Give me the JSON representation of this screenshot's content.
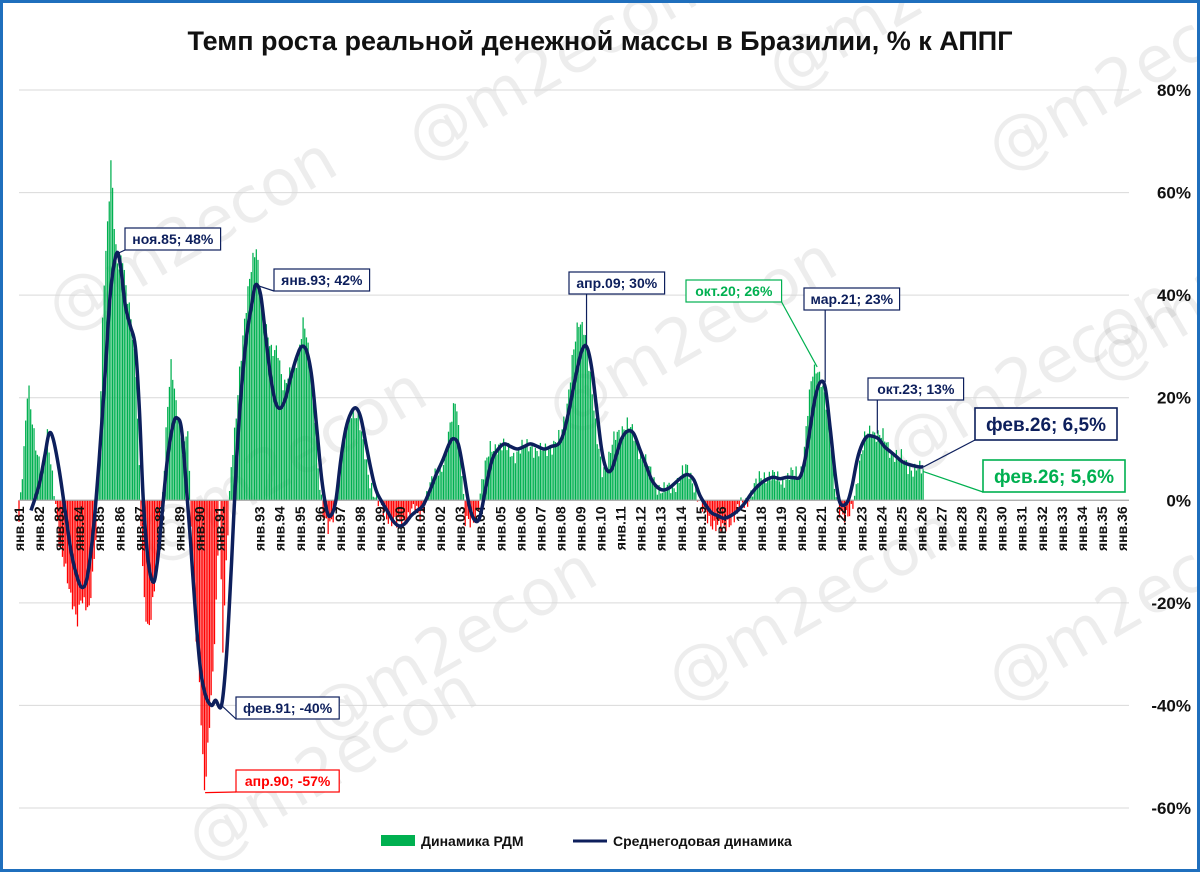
{
  "chart_data": {
    "type": "bar+line",
    "title": "Темп роста реальной денежной массы в Бразилии, % к АППГ",
    "watermark": "@m2econ",
    "y_axis": {
      "min": -60,
      "max": 80,
      "step": 20,
      "position": "right",
      "tick_labels": [
        "80%",
        "60%",
        "40%",
        "20%",
        "0%",
        "-20%",
        "-40%",
        "-60%"
      ]
    },
    "x_axis": {
      "start_year": 1981,
      "end_year": 2036,
      "tick_labels": [
        "янв.81",
        "янв.82",
        "янв.83",
        "янв.84",
        "янв.85",
        "янв.86",
        "янв.87",
        "янв.88",
        "янв.89",
        "янв.90",
        "янв.91",
        "янв.93",
        "янв.94",
        "янв.95",
        "янв.96",
        "янв.97",
        "янв.98",
        "янв.99",
        "янв.00",
        "янв.01",
        "янв.02",
        "янв.03",
        "янв.04",
        "янв.05",
        "янв.06",
        "янв.07",
        "янв.08",
        "янв.09",
        "янв.10",
        "янв.11",
        "янв.12",
        "янв.13",
        "янв.14",
        "янв.15",
        "янв.16",
        "янв.17",
        "янв.18",
        "янв.19",
        "янв.20",
        "янв.21",
        "янв.22",
        "янв.23",
        "янв.24",
        "янв.25",
        "янв.26",
        "янв.27",
        "янв.28",
        "янв.29",
        "янв.30",
        "янв.31",
        "янв.32",
        "янв.33",
        "янв.34",
        "янв.35",
        "янв.36"
      ],
      "tick_years": [
        1981,
        1982,
        1983,
        1984,
        1985,
        1986,
        1987,
        1988,
        1989,
        1990,
        1991,
        1993,
        1994,
        1995,
        1996,
        1997,
        1998,
        1999,
        2000,
        2001,
        2002,
        2003,
        2004,
        2005,
        2006,
        2007,
        2008,
        2009,
        2010,
        2011,
        2012,
        2013,
        2014,
        2015,
        2016,
        2017,
        2018,
        2019,
        2020,
        2021,
        2022,
        2023,
        2024,
        2025,
        2026,
        2027,
        2028,
        2029,
        2030,
        2031,
        2032,
        2033,
        2034,
        2035,
        2036
      ]
    },
    "grid": true,
    "legend_position": "bottom",
    "colors": {
      "bar_positive": "#00b050",
      "bar_negative": "#ff0000",
      "line": "#0d1f5c",
      "annotation_navy": "#0d1f5c",
      "annotation_green": "#00b050",
      "annotation_red": "#ff0000",
      "frame": "#1f6fbd",
      "grid": "#d9d9d9"
    },
    "legend": [
      {
        "label": "Динамика РДМ",
        "type": "bar"
      },
      {
        "label": "Среднегодовая динамика",
        "type": "line"
      }
    ],
    "series_bars_points": [
      [
        1981.0,
        -5
      ],
      [
        1981.25,
        10
      ],
      [
        1981.45,
        24
      ],
      [
        1981.7,
        14
      ],
      [
        1981.9,
        8
      ],
      [
        1982.15,
        6
      ],
      [
        1982.4,
        14
      ],
      [
        1982.7,
        3
      ],
      [
        1983.0,
        -8
      ],
      [
        1983.3,
        -12
      ],
      [
        1983.6,
        -20
      ],
      [
        1983.9,
        -24
      ],
      [
        1984.1,
        -18
      ],
      [
        1984.5,
        -22
      ],
      [
        1984.8,
        -10
      ],
      [
        1985.0,
        10
      ],
      [
        1985.2,
        40
      ],
      [
        1985.45,
        55
      ],
      [
        1985.6,
        66
      ],
      [
        1985.8,
        50
      ],
      [
        1986.0,
        46
      ],
      [
        1986.15,
        48
      ],
      [
        1986.35,
        40
      ],
      [
        1986.6,
        35
      ],
      [
        1986.85,
        25
      ],
      [
        1987.05,
        0
      ],
      [
        1987.2,
        -18
      ],
      [
        1987.4,
        -26
      ],
      [
        1987.6,
        -22
      ],
      [
        1987.8,
        -14
      ],
      [
        1988.0,
        -6
      ],
      [
        1988.2,
        2
      ],
      [
        1988.4,
        18
      ],
      [
        1988.6,
        28
      ],
      [
        1988.8,
        20
      ],
      [
        1989.0,
        14
      ],
      [
        1989.2,
        8
      ],
      [
        1989.4,
        16
      ],
      [
        1989.6,
        -5
      ],
      [
        1989.8,
        -25
      ],
      [
        1990.0,
        -36
      ],
      [
        1990.15,
        -50
      ],
      [
        1990.28,
        -57
      ],
      [
        1990.45,
        -45
      ],
      [
        1990.65,
        -35
      ],
      [
        1990.85,
        -20
      ],
      [
        1991.0,
        0
      ],
      [
        1991.15,
        -30
      ],
      [
        1991.35,
        -10
      ],
      [
        1991.55,
        5
      ],
      [
        1991.8,
        14
      ],
      [
        1992.0,
        25
      ],
      [
        1992.2,
        34
      ],
      [
        1992.45,
        42
      ],
      [
        1992.65,
        46
      ],
      [
        1992.85,
        49
      ],
      [
        1993.05,
        40
      ],
      [
        1993.3,
        34
      ],
      [
        1993.6,
        28
      ],
      [
        1993.9,
        30
      ],
      [
        1994.2,
        22
      ],
      [
        1994.5,
        24
      ],
      [
        1994.8,
        27
      ],
      [
        1995.0,
        31
      ],
      [
        1995.2,
        35
      ],
      [
        1995.45,
        28
      ],
      [
        1995.7,
        20
      ],
      [
        1995.95,
        5
      ],
      [
        1996.15,
        -3
      ],
      [
        1996.4,
        -6
      ],
      [
        1996.7,
        -2
      ],
      [
        1997.0,
        6
      ],
      [
        1997.3,
        14
      ],
      [
        1997.6,
        18
      ],
      [
        1997.9,
        16
      ],
      [
        1998.2,
        10
      ],
      [
        1998.5,
        4
      ],
      [
        1998.8,
        0
      ],
      [
        1999.1,
        -2
      ],
      [
        1999.4,
        -3
      ],
      [
        1999.8,
        -5
      ],
      [
        2000.2,
        -4
      ],
      [
        2000.6,
        -2
      ],
      [
        2001.0,
        -3
      ],
      [
        2001.4,
        2
      ],
      [
        2001.8,
        5
      ],
      [
        2002.2,
        8
      ],
      [
        2002.5,
        14
      ],
      [
        2002.8,
        20
      ],
      [
        2003.0,
        10
      ],
      [
        2003.25,
        -4
      ],
      [
        2003.5,
        -5
      ],
      [
        2003.8,
        -3
      ],
      [
        2004.1,
        4
      ],
      [
        2004.5,
        10
      ],
      [
        2004.9,
        11
      ],
      [
        2005.3,
        10
      ],
      [
        2005.7,
        9
      ],
      [
        2006.1,
        10
      ],
      [
        2006.5,
        11
      ],
      [
        2006.9,
        9
      ],
      [
        2007.3,
        10
      ],
      [
        2007.7,
        11
      ],
      [
        2008.0,
        12
      ],
      [
        2008.3,
        18
      ],
      [
        2008.6,
        28
      ],
      [
        2008.9,
        34
      ],
      [
        2009.2,
        34
      ],
      [
        2009.5,
        24
      ],
      [
        2009.8,
        12
      ],
      [
        2010.1,
        6
      ],
      [
        2010.4,
        8
      ],
      [
        2010.7,
        12
      ],
      [
        2011.0,
        14
      ],
      [
        2011.3,
        15
      ],
      [
        2011.6,
        13
      ],
      [
        2011.9,
        10
      ],
      [
        2012.2,
        8
      ],
      [
        2012.5,
        5
      ],
      [
        2012.8,
        3
      ],
      [
        2013.1,
        2
      ],
      [
        2013.4,
        2
      ],
      [
        2013.7,
        3
      ],
      [
        2014.0,
        5
      ],
      [
        2014.3,
        6
      ],
      [
        2014.6,
        4
      ],
      [
        2014.9,
        0
      ],
      [
        2015.2,
        -3
      ],
      [
        2015.5,
        -4
      ],
      [
        2015.8,
        -5
      ],
      [
        2016.1,
        -6
      ],
      [
        2016.4,
        -4
      ],
      [
        2016.7,
        -3
      ],
      [
        2017.0,
        -1
      ],
      [
        2017.3,
        0
      ],
      [
        2017.6,
        2
      ],
      [
        2017.9,
        4
      ],
      [
        2018.2,
        5
      ],
      [
        2018.5,
        5
      ],
      [
        2018.8,
        4
      ],
      [
        2019.1,
        4
      ],
      [
        2019.4,
        5
      ],
      [
        2019.7,
        5
      ],
      [
        2019.95,
        5
      ],
      [
        2020.15,
        10
      ],
      [
        2020.35,
        18
      ],
      [
        2020.55,
        24
      ],
      [
        2020.8,
        26
      ],
      [
        2021.0,
        24
      ],
      [
        2021.2,
        20
      ],
      [
        2021.45,
        12
      ],
      [
        2021.7,
        2
      ],
      [
        2021.95,
        -2
      ],
      [
        2022.2,
        -4
      ],
      [
        2022.45,
        -3
      ],
      [
        2022.7,
        2
      ],
      [
        2022.95,
        8
      ],
      [
        2023.2,
        12
      ],
      [
        2023.5,
        14
      ],
      [
        2023.8,
        13
      ],
      [
        2024.1,
        12
      ],
      [
        2024.4,
        10
      ],
      [
        2024.7,
        9
      ],
      [
        2025.0,
        8
      ],
      [
        2025.3,
        7
      ],
      [
        2025.6,
        6
      ],
      [
        2025.9,
        5.8
      ],
      [
        2026.1,
        5.6
      ]
    ],
    "series_line_points": [
      [
        1981.6,
        -2
      ],
      [
        1982.0,
        3
      ],
      [
        1982.3,
        9
      ],
      [
        1982.5,
        13
      ],
      [
        1982.7,
        12
      ],
      [
        1983.0,
        6
      ],
      [
        1983.3,
        -2
      ],
      [
        1983.6,
        -10
      ],
      [
        1983.9,
        -15
      ],
      [
        1984.15,
        -17
      ],
      [
        1984.4,
        -15
      ],
      [
        1984.7,
        -6
      ],
      [
        1985.0,
        8
      ],
      [
        1985.3,
        25
      ],
      [
        1985.55,
        40
      ],
      [
        1985.85,
        48
      ],
      [
        1986.05,
        46
      ],
      [
        1986.3,
        38
      ],
      [
        1986.55,
        34
      ],
      [
        1986.8,
        30
      ],
      [
        1987.0,
        18
      ],
      [
        1987.2,
        0
      ],
      [
        1987.45,
        -12
      ],
      [
        1987.7,
        -16
      ],
      [
        1987.9,
        -12
      ],
      [
        1988.1,
        -4
      ],
      [
        1988.4,
        8
      ],
      [
        1988.7,
        15
      ],
      [
        1988.9,
        16
      ],
      [
        1989.1,
        14
      ],
      [
        1989.3,
        5
      ],
      [
        1989.55,
        -8
      ],
      [
        1989.8,
        -22
      ],
      [
        1990.05,
        -33
      ],
      [
        1990.3,
        -38
      ],
      [
        1990.6,
        -40
      ],
      [
        1990.8,
        -39
      ],
      [
        1991.1,
        -40
      ],
      [
        1991.35,
        -30
      ],
      [
        1991.6,
        -12
      ],
      [
        1991.85,
        8
      ],
      [
        1992.1,
        22
      ],
      [
        1992.35,
        32
      ],
      [
        1992.6,
        38
      ],
      [
        1992.8,
        42
      ],
      [
        1993.05,
        40
      ],
      [
        1993.3,
        32
      ],
      [
        1993.55,
        24
      ],
      [
        1993.8,
        19
      ],
      [
        1994.05,
        18
      ],
      [
        1994.3,
        20
      ],
      [
        1994.55,
        24
      ],
      [
        1994.85,
        28
      ],
      [
        1995.1,
        30
      ],
      [
        1995.35,
        29
      ],
      [
        1995.6,
        24
      ],
      [
        1995.85,
        14
      ],
      [
        1996.1,
        4
      ],
      [
        1996.35,
        -2
      ],
      [
        1996.55,
        -3
      ],
      [
        1996.8,
        0
      ],
      [
        1997.05,
        8
      ],
      [
        1997.3,
        14
      ],
      [
        1997.55,
        17
      ],
      [
        1997.8,
        18
      ],
      [
        1998.05,
        16
      ],
      [
        1998.3,
        11
      ],
      [
        1998.55,
        6
      ],
      [
        1998.8,
        2
      ],
      [
        1999.05,
        0
      ],
      [
        1999.35,
        -2
      ],
      [
        1999.65,
        -4
      ],
      [
        1999.95,
        -5
      ],
      [
        2000.25,
        -4.5
      ],
      [
        2000.55,
        -3
      ],
      [
        2000.85,
        -2
      ],
      [
        2001.15,
        -1
      ],
      [
        2001.5,
        2
      ],
      [
        2001.8,
        5
      ],
      [
        2002.15,
        8
      ],
      [
        2002.45,
        11
      ],
      [
        2002.65,
        12
      ],
      [
        2002.9,
        11
      ],
      [
        2003.15,
        6
      ],
      [
        2003.45,
        -1
      ],
      [
        2003.75,
        -4
      ],
      [
        2004.0,
        -3
      ],
      [
        2004.3,
        3
      ],
      [
        2004.6,
        8
      ],
      [
        2004.9,
        10
      ],
      [
        2005.2,
        11
      ],
      [
        2005.5,
        10.5
      ],
      [
        2005.85,
        10
      ],
      [
        2006.2,
        10.5
      ],
      [
        2006.5,
        11
      ],
      [
        2006.85,
        10.5
      ],
      [
        2007.2,
        10
      ],
      [
        2007.55,
        10.5
      ],
      [
        2007.9,
        11
      ],
      [
        2008.15,
        13
      ],
      [
        2008.45,
        18
      ],
      [
        2008.75,
        24
      ],
      [
        2009.05,
        29
      ],
      [
        2009.3,
        30
      ],
      [
        2009.55,
        26
      ],
      [
        2009.8,
        18
      ],
      [
        2010.05,
        10
      ],
      [
        2010.3,
        6
      ],
      [
        2010.55,
        6
      ],
      [
        2010.8,
        9
      ],
      [
        2011.05,
        12
      ],
      [
        2011.35,
        13.5
      ],
      [
        2011.65,
        13
      ],
      [
        2011.95,
        10
      ],
      [
        2012.25,
        7
      ],
      [
        2012.55,
        4
      ],
      [
        2012.85,
        2.5
      ],
      [
        2013.15,
        2
      ],
      [
        2013.45,
        2.5
      ],
      [
        2013.75,
        3.5
      ],
      [
        2014.05,
        4.5
      ],
      [
        2014.35,
        5
      ],
      [
        2014.65,
        4
      ],
      [
        2014.95,
        1
      ],
      [
        2015.25,
        -1
      ],
      [
        2015.55,
        -2.5
      ],
      [
        2015.85,
        -3
      ],
      [
        2016.15,
        -3.5
      ],
      [
        2016.5,
        -3
      ],
      [
        2016.85,
        -2
      ],
      [
        2017.2,
        -0.5
      ],
      [
        2017.55,
        1.5
      ],
      [
        2017.9,
        3
      ],
      [
        2018.25,
        4
      ],
      [
        2018.6,
        4.5
      ],
      [
        2018.95,
        4.2
      ],
      [
        2019.3,
        4.5
      ],
      [
        2019.65,
        4.4
      ],
      [
        2019.95,
        4.6
      ],
      [
        2020.2,
        8
      ],
      [
        2020.45,
        14
      ],
      [
        2020.7,
        20
      ],
      [
        2020.95,
        23
      ],
      [
        2021.2,
        22
      ],
      [
        2021.45,
        14
      ],
      [
        2021.7,
        5
      ],
      [
        2021.9,
        0
      ],
      [
        2022.1,
        -1
      ],
      [
        2022.35,
        0
      ],
      [
        2022.55,
        3
      ],
      [
        2022.8,
        8
      ],
      [
        2023.05,
        11
      ],
      [
        2023.3,
        12.5
      ],
      [
        2023.55,
        12.5
      ],
      [
        2023.85,
        12
      ],
      [
        2024.15,
        10.5
      ],
      [
        2024.45,
        9.5
      ],
      [
        2024.75,
        8.5
      ],
      [
        2025.05,
        7.5
      ],
      [
        2025.35,
        7
      ],
      [
        2025.65,
        6.7
      ],
      [
        2025.9,
        6.5
      ],
      [
        2026.1,
        6.5
      ]
    ],
    "annotations": [
      {
        "text": "ноя.85; 48%",
        "x": 1985.85,
        "y": 48,
        "color": "navy",
        "label_left": 122,
        "label_top": 225,
        "big": false
      },
      {
        "text": "янв.93; 42%",
        "x": 1992.8,
        "y": 42,
        "color": "navy",
        "label_left": 271,
        "label_top": 266,
        "big": false
      },
      {
        "text": "апр.09; 30%",
        "x": 1009.3,
        "y": 30,
        "color": "navy",
        "label_left": 566,
        "label_top": 269,
        "big": false
      },
      {
        "text": "окт.20; 26%",
        "x": 2020.8,
        "y": 26,
        "color": "green",
        "label_left": 683,
        "label_top": 277,
        "big": false
      },
      {
        "text": "мар.21; 23%",
        "x": 2021.2,
        "y": 23,
        "color": "navy",
        "label_left": 801,
        "label_top": 285,
        "big": false
      },
      {
        "text": "окт.23; 13%",
        "x": 2023.8,
        "y": 13,
        "color": "navy",
        "label_left": 865,
        "label_top": 375,
        "big": false
      },
      {
        "text": "фев.91; -40%",
        "x": 1991.1,
        "y": -40,
        "color": "navy",
        "label_left": 233,
        "label_top": 694,
        "big": false
      },
      {
        "text": "апр.90; -57%",
        "x": 1990.28,
        "y": -57,
        "color": "red",
        "label_left": 233,
        "label_top": 767,
        "big": false
      },
      {
        "text": "фев.26; 6,5%",
        "x": 2026.1,
        "y": 6.5,
        "color": "navy",
        "label_left": 972,
        "label_top": 405,
        "big": true
      },
      {
        "text": "фев.26; 5,6%",
        "x": 2026.1,
        "y": 5.6,
        "color": "green",
        "label_left": 980,
        "label_top": 457,
        "big": true
      }
    ]
  }
}
